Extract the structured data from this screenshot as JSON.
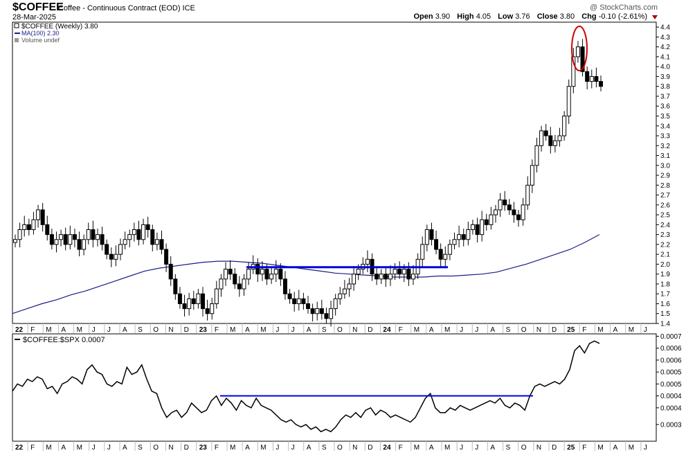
{
  "header": {
    "symbol": "$COFFEE",
    "description": "Coffee - Continuous Contract (EOD) ICE",
    "date": "28-Mar-2025",
    "watermark": "@ StockCharts.com",
    "open_label": "Open",
    "open": "3.90",
    "high_label": "High",
    "high": "4.05",
    "low_label": "Low",
    "low": "3.76",
    "close_label": "Close",
    "close": "3.80",
    "chg_label": "Chg",
    "chg": "-0.10 (-2.61%)"
  },
  "legend": {
    "price": "$COFFEE (Weekly) 3.80",
    "ma": "MA(100) 2.30",
    "volume": "Volume undef"
  },
  "colors": {
    "ma": "#1a1a8c",
    "annotation_line": "#0000e0",
    "circle": "#d00000",
    "ratio": "#000000"
  },
  "chart_data": [
    {
      "type": "candlestick",
      "title": "$COFFEE (Weekly) 3.80",
      "ylim": [
        1.4,
        4.45
      ],
      "yticks": [
        "1.4",
        "1.5",
        "1.6",
        "1.7",
        "1.8",
        "1.9",
        "2.0",
        "2.1",
        "2.2",
        "2.3",
        "2.4",
        "2.5",
        "2.6",
        "2.7",
        "2.8",
        "2.9",
        "3.0",
        "3.1",
        "3.2",
        "3.3",
        "3.4",
        "3.5",
        "3.6",
        "3.7",
        "3.8",
        "3.9",
        "4.0",
        "4.1",
        "4.2",
        "4.3",
        "4.4"
      ],
      "x_labels": [
        "22",
        "F",
        "M",
        "A",
        "M",
        "J",
        "J",
        "A",
        "S",
        "O",
        "N",
        "D",
        "23",
        "F",
        "M",
        "A",
        "M",
        "J",
        "J",
        "A",
        "S",
        "O",
        "N",
        "D",
        "24",
        "F",
        "M",
        "A",
        "M",
        "J",
        "J",
        "A",
        "S",
        "O",
        "N",
        "D",
        "25",
        "F",
        "M",
        "A",
        "M",
        "J"
      ],
      "series": [
        {
          "name": "Price",
          "closes": [
            2.25,
            2.35,
            2.4,
            2.35,
            2.45,
            2.55,
            2.4,
            2.3,
            2.2,
            2.25,
            2.3,
            2.2,
            2.3,
            2.25,
            2.15,
            2.25,
            2.35,
            2.25,
            2.3,
            2.2,
            2.1,
            2.05,
            2.1,
            2.2,
            2.25,
            2.3,
            2.35,
            2.25,
            2.4,
            2.35,
            2.2,
            2.25,
            2.15,
            2.0,
            1.85,
            1.7,
            1.6,
            1.55,
            1.65,
            1.6,
            1.7,
            1.55,
            1.5,
            1.6,
            1.75,
            1.85,
            1.95,
            1.9,
            1.8,
            1.75,
            1.85,
            1.95,
            2.0,
            1.9,
            1.95,
            1.85,
            1.9,
            1.95,
            1.85,
            1.7,
            1.65,
            1.6,
            1.65,
            1.6,
            1.55,
            1.5,
            1.55,
            1.5,
            1.45,
            1.55,
            1.65,
            1.7,
            1.75,
            1.8,
            1.9,
            1.95,
            2.0,
            2.05,
            1.9,
            1.85,
            1.9,
            1.85,
            1.9,
            1.95,
            1.9,
            1.95,
            1.85,
            1.9,
            2.05,
            2.2,
            2.35,
            2.25,
            2.15,
            2.05,
            2.1,
            2.2,
            2.25,
            2.3,
            2.25,
            2.35,
            2.4,
            2.3,
            2.45,
            2.4,
            2.5,
            2.55,
            2.65,
            2.6,
            2.55,
            2.5,
            2.45,
            2.6,
            2.8,
            3.0,
            3.2,
            3.35,
            3.3,
            3.2,
            3.25,
            3.3,
            3.5,
            3.8,
            4.1,
            4.2,
            3.95,
            3.85,
            3.9,
            3.85,
            3.8
          ]
        },
        {
          "name": "MA(100)",
          "values": [
            1.5,
            1.55,
            1.6,
            1.64,
            1.69,
            1.73,
            1.78,
            1.83,
            1.88,
            1.93,
            1.96,
            1.98,
            2.0,
            2.02,
            2.03,
            2.03,
            2.02,
            2.01,
            1.99,
            1.97,
            1.95,
            1.93,
            1.91,
            1.9,
            1.89,
            1.88,
            1.87,
            1.87,
            1.87,
            1.88,
            1.88,
            1.89,
            1.9,
            1.92,
            1.96,
            2.0,
            2.05,
            2.1,
            2.15,
            2.22,
            2.3
          ]
        }
      ],
      "annotations": [
        {
          "type": "horizontal_line",
          "value": 1.97,
          "from": "Apr 2023",
          "to": "May 2024"
        },
        {
          "type": "circle",
          "near": "Feb 2025 high"
        }
      ]
    },
    {
      "type": "line",
      "title": "$COFFEE:$SPX 0.0007",
      "ylim": [
        0.00026,
        0.00071
      ],
      "yticks": [
        "0.0003",
        "0.0004",
        "0.0004",
        "0.0005",
        "0.0005",
        "0.0006",
        "0.0006",
        "0.0007"
      ],
      "x_labels": [
        "22",
        "F",
        "M",
        "A",
        "M",
        "J",
        "J",
        "A",
        "S",
        "O",
        "N",
        "D",
        "23",
        "F",
        "M",
        "A",
        "M",
        "J",
        "J",
        "A",
        "S",
        "O",
        "N",
        "D",
        "24",
        "F",
        "M",
        "A",
        "M",
        "J",
        "J",
        "A",
        "S",
        "O",
        "N",
        "D",
        "25",
        "F",
        "M",
        "A",
        "M",
        "J"
      ],
      "series": [
        {
          "name": "$COFFEE:$SPX",
          "values": [
            0.00047,
            0.0005,
            0.00049,
            0.00052,
            0.00051,
            0.00053,
            0.00052,
            0.00048,
            0.00049,
            0.00046,
            0.0005,
            0.00051,
            0.00053,
            0.00052,
            0.0005,
            0.00056,
            0.00058,
            0.00055,
            0.00054,
            0.0005,
            0.00049,
            0.00051,
            0.0005,
            0.00057,
            0.00054,
            0.00055,
            0.00058,
            0.00052,
            0.00047,
            0.00046,
            0.0004,
            0.00036,
            0.00038,
            0.00039,
            0.00036,
            0.00038,
            0.00042,
            0.0004,
            0.00038,
            0.00039,
            0.00043,
            0.00045,
            0.00041,
            0.00044,
            0.00042,
            0.00039,
            0.00043,
            0.00041,
            0.0004,
            0.00044,
            0.00041,
            0.0004,
            0.00039,
            0.00037,
            0.00035,
            0.00034,
            0.00035,
            0.00033,
            0.00032,
            0.00033,
            0.00031,
            0.00032,
            0.0003,
            0.00031,
            0.0003,
            0.00032,
            0.00035,
            0.00037,
            0.00036,
            0.00038,
            0.00036,
            0.00039,
            0.0004,
            0.00037,
            0.00039,
            0.00038,
            0.00036,
            0.00037,
            0.00036,
            0.00035,
            0.00034,
            0.00036,
            0.0004,
            0.00044,
            0.00046,
            0.0004,
            0.00038,
            0.00038,
            0.0004,
            0.00039,
            0.00041,
            0.0004,
            0.00039,
            0.0004,
            0.00041,
            0.00042,
            0.00043,
            0.00042,
            0.00044,
            0.00041,
            0.0004,
            0.00042,
            0.00041,
            0.00039,
            0.00045,
            0.00049,
            0.0005,
            0.00049,
            0.0005,
            0.00051,
            0.0005,
            0.00052,
            0.00056,
            0.00064,
            0.00066,
            0.00063,
            0.00067,
            0.00068,
            0.00067
          ]
        }
      ],
      "annotations": [
        {
          "type": "horizontal_line",
          "value": 0.00045,
          "from": "Feb 2023",
          "to": "Oct 2024"
        }
      ]
    }
  ]
}
